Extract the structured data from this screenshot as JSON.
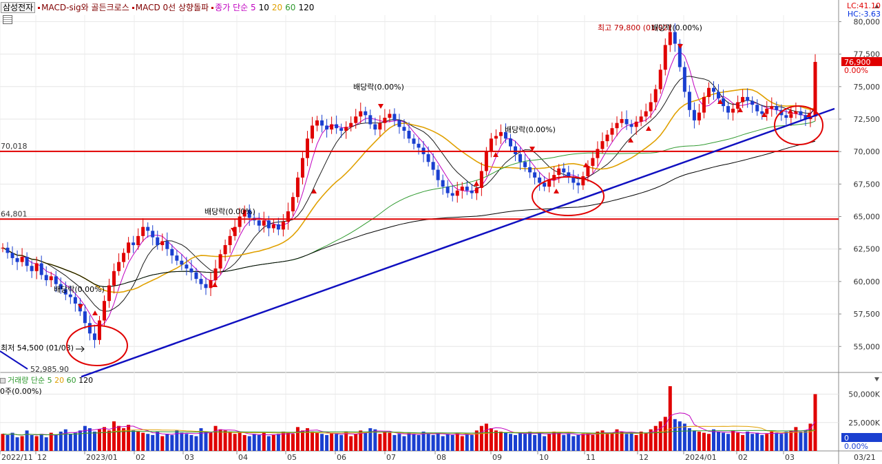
{
  "legend": {
    "stock_name": "삼성전자",
    "indicator_1": "MACD-sig와 골든크로스",
    "indicator_2": "MACD 0선 상향돌파",
    "ma_label": "종가 단순 5",
    "ma_periods": [
      "10",
      "20",
      "60",
      "120"
    ]
  },
  "top_right": {
    "lc": "LC:41.10",
    "hc": "HC:-3.63"
  },
  "volume_legend": {
    "label": "거래량 단순 5",
    "periods": [
      "20",
      "60",
      "120"
    ],
    "current": "0주(0.00%)"
  },
  "colors": {
    "up": "#e00000",
    "down": "#1a3fd0",
    "ma5": "#c000c0",
    "ma10": "#1a1a1a",
    "ma20": "#e0a000",
    "ma60": "#2f9a2f",
    "ma120": "#000000",
    "trendline": "#1010c0",
    "hline": "#e00000",
    "circle": "#e00000"
  },
  "chart_data": {
    "type": "candlestick",
    "title": "",
    "y_axis": {
      "min": 53000,
      "max": 80500,
      "ticks": [
        "80,000",
        "77,500",
        "75,000",
        "72,500",
        "70,000",
        "67,500",
        "65,000",
        "62,500",
        "60,000",
        "57,500",
        "55,000"
      ]
    },
    "x_axis": {
      "ticks": [
        "2022/11",
        "12",
        "2023/01",
        "02",
        "03",
        "04",
        "05",
        "06",
        "07",
        "08",
        "09",
        "10",
        "11",
        "12",
        "2024/01",
        "02",
        "03",
        "03/21"
      ]
    },
    "current_price": {
      "label": "76,900",
      "change": "0.00%",
      "value": 76900
    },
    "horizontal_lines": [
      {
        "value": 70018,
        "label": "70,018"
      },
      {
        "value": 64801,
        "label": "64,801"
      }
    ],
    "trendline": {
      "start": {
        "date": "2022/12",
        "value": 52985.9,
        "label": "52,985.90"
      },
      "end": {
        "date": "03/21",
        "value": 73300
      }
    },
    "annotations": [
      {
        "text": "최고 79,800 (01/02)",
        "value": 79800,
        "date": "2024/01"
      },
      {
        "text": "최저 54,500 (01/03)",
        "value": 54500,
        "date": "2023/01"
      },
      {
        "text": "배당락(0.00%)",
        "date": "2023/01",
        "value": 59000
      },
      {
        "text": "배당락(0.00%)",
        "date": "04",
        "value": 65500
      },
      {
        "text": "배당락(0.00%)",
        "date": "07",
        "value": 74000
      },
      {
        "text": "배당락(0.00%)",
        "date": "09",
        "value": 71500
      },
      {
        "text": "배당락(0.00%)",
        "date": "2024/01",
        "value": 79800
      }
    ],
    "series": [
      {
        "name": "price",
        "values": [
          62600,
          62200,
          61800,
          61500,
          61900,
          61200,
          60800,
          61400,
          60500,
          60100,
          60400,
          59800,
          59400,
          59000,
          58800,
          58300,
          57700,
          56800,
          56000,
          55500,
          57000,
          58500,
          59700,
          60800,
          61500,
          62200,
          63000,
          62800,
          63500,
          64200,
          63900,
          63400,
          62800,
          63100,
          62500,
          62000,
          61600,
          61300,
          61000,
          60700,
          60200,
          59800,
          59500,
          60100,
          61000,
          62100,
          62800,
          63500,
          64200,
          65000,
          65500,
          64900,
          64700,
          64300,
          64700,
          64100,
          64400,
          64000,
          64600,
          65400,
          66500,
          68000,
          69500,
          71000,
          72000,
          72400,
          72000,
          71700,
          72100,
          71800,
          71600,
          71900,
          72200,
          72700,
          73100,
          72800,
          72100,
          71700,
          72200,
          72600,
          72900,
          72400,
          71900,
          71600,
          71000,
          70600,
          70300,
          69800,
          69200,
          68600,
          67800,
          67300,
          66800,
          66600,
          67000,
          67300,
          67000,
          66800,
          67200,
          68500,
          70000,
          71000,
          71200,
          71500,
          71000,
          70400,
          69800,
          69200,
          68800,
          68400,
          68000,
          67600,
          67300,
          67800,
          68200,
          68700,
          68400,
          68000,
          67600,
          67400,
          68100,
          68900,
          69500,
          70200,
          70800,
          71300,
          71800,
          72200,
          72500,
          72100,
          71900,
          72300,
          72700,
          73100,
          73800,
          74800,
          76300,
          78200,
          79200,
          78300,
          76500,
          74600,
          73200,
          72400,
          73000,
          74200,
          74900,
          74600,
          74100,
          73500,
          73000,
          73300,
          73800,
          74200,
          73900,
          73600,
          73100,
          72900,
          73300,
          73500,
          73200,
          72800,
          72600,
          72900,
          73100,
          72800,
          72500,
          72700,
          76900
        ]
      },
      {
        "name": "volume",
        "values": [
          15000,
          14000,
          16000,
          12000,
          13000,
          18000,
          14000,
          13000,
          15000,
          12000,
          16000,
          14000,
          17000,
          19000,
          15000,
          16000,
          18000,
          22000,
          20000,
          17000,
          19000,
          21000,
          18000,
          26000,
          22000,
          20000,
          23000,
          18000,
          17000,
          16000,
          15000,
          14000,
          17000,
          13000,
          15000,
          14000,
          18000,
          16000,
          15000,
          14000,
          13000,
          20000,
          17000,
          16000,
          22000,
          19000,
          18000,
          17000,
          15000,
          16000,
          14000,
          13000,
          15000,
          14000,
          16000,
          13000,
          14000,
          15000,
          17000,
          16000,
          15000,
          21000,
          18000,
          20000,
          17000,
          16000,
          15000,
          14000,
          16000,
          15000,
          14000,
          17000,
          13000,
          15000,
          18000,
          16000,
          20000,
          19000,
          15000,
          17000,
          16000,
          14000,
          15000,
          13000,
          16000,
          15000,
          14000,
          17000,
          15000,
          14000,
          16000,
          13000,
          15000,
          14000,
          16000,
          13000,
          15000,
          14000,
          18000,
          22000,
          24000,
          20000,
          18000,
          17000,
          16000,
          15000,
          14000,
          16000,
          15000,
          17000,
          14000,
          16000,
          13000,
          15000,
          17000,
          16000,
          14000,
          15000,
          13000,
          14000,
          15000,
          16000,
          14000,
          17000,
          18000,
          15000,
          16000,
          19000,
          17000,
          15000,
          16000,
          14000,
          17000,
          16000,
          19000,
          22000,
          26000,
          30000,
          57000,
          28000,
          26000,
          24000,
          20000,
          18000,
          17000,
          16000,
          15000,
          19000,
          17000,
          16000,
          15000,
          18000,
          16000,
          14000,
          17000,
          15000,
          16000,
          14000,
          15000,
          17000,
          16000,
          15000,
          17000,
          18000,
          21000,
          17000,
          18000,
          24000,
          50000
        ]
      }
    ],
    "volume_axis": {
      "min": 0,
      "max": 60000,
      "ticks": [
        "50,000K",
        "25,000K"
      ],
      "current": "0",
      "current_pct": "0.00%"
    }
  }
}
